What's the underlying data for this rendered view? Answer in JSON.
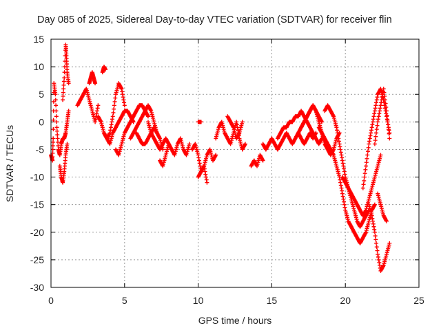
{
  "chart_data": {
    "type": "scatter",
    "title": "Day 085 of 2025, Sidereal Day-to-day VTEC variation (SDTVAR) for receiver flin",
    "xlabel": "GPS time / hours",
    "ylabel": "SDTVAR / TECUs",
    "xlim": [
      0,
      25
    ],
    "ylim": [
      -30,
      15
    ],
    "xticks": [
      "0",
      "5",
      "10",
      "15",
      "20",
      "25"
    ],
    "yticks": [
      "15",
      "10",
      "5",
      "0",
      "-5",
      "-10",
      "-15",
      "-20",
      "-25",
      "-30"
    ],
    "grid": true,
    "marker": "+",
    "series_color": "#ff0000",
    "series": [
      {
        "name": "SDTVAR",
        "segments": [
          {
            "x": [
              0.0,
              0.1,
              0.15,
              0.2,
              0.3,
              0.4,
              0.5,
              0.6,
              0.7,
              0.8,
              0.9,
              1.0,
              1.1,
              1.2
            ],
            "y": [
              -6,
              -7,
              -3,
              7,
              5,
              -1,
              -5,
              -6,
              -4,
              -3,
              -3,
              -2,
              0,
              2
            ]
          },
          {
            "x": [
              0.6,
              0.7,
              0.8,
              0.9,
              1.0,
              1.1
            ],
            "y": [
              -8,
              -10,
              -11,
              -9,
              -6,
              -4
            ]
          },
          {
            "x": [
              0.8,
              0.9,
              1.0,
              1.05,
              1.1,
              1.2
            ],
            "y": [
              4,
              8,
              14,
              12,
              9,
              7
            ]
          },
          {
            "x": [
              1.8,
              2.0,
              2.2,
              2.4,
              2.6,
              2.8,
              3.0,
              3.2
            ],
            "y": [
              3,
              4,
              5,
              6,
              4,
              2,
              0,
              3
            ]
          },
          {
            "x": [
              2.6,
              2.7,
              2.8,
              2.9,
              3.0
            ],
            "y": [
              7,
              8,
              9,
              8,
              7
            ]
          },
          {
            "x": [
              3.5,
              3.6,
              3.7
            ],
            "y": [
              9,
              10,
              9.5
            ]
          },
          {
            "x": [
              3.2,
              3.4,
              3.6,
              3.8,
              4.0,
              4.2,
              4.4,
              4.6,
              4.8,
              5.0
            ],
            "y": [
              1,
              0,
              -2,
              -3,
              -2,
              1,
              5,
              7,
              6,
              3
            ]
          },
          {
            "x": [
              3.6,
              3.8,
              4.0,
              4.2,
              4.4,
              4.6,
              4.8,
              5.0,
              5.2,
              5.4,
              5.6
            ],
            "y": [
              -2,
              -3,
              -4,
              -2,
              -1,
              0,
              1,
              2,
              2,
              1,
              0
            ]
          },
          {
            "x": [
              4.4,
              4.6,
              4.8,
              5.0,
              5.2,
              5.4,
              5.6,
              5.8,
              6.0,
              6.2,
              6.4,
              6.6
            ],
            "y": [
              -5,
              -6,
              -4,
              -2,
              -1,
              0,
              1,
              2,
              3,
              3,
              2,
              1
            ]
          },
          {
            "x": [
              5.4,
              5.6,
              5.8,
              6.0,
              6.2,
              6.4,
              6.6,
              6.8,
              7.0,
              7.2
            ],
            "y": [
              -3,
              -2,
              -1,
              0,
              1,
              2,
              3,
              2,
              0,
              -2
            ]
          },
          {
            "x": [
              5.8,
              6.0,
              6.2,
              6.4,
              6.6,
              6.8,
              7.0,
              7.2,
              7.4,
              7.6
            ],
            "y": [
              -2,
              -3,
              -4,
              -4,
              -3,
              -2,
              -1,
              -2,
              -3,
              -5
            ]
          },
          {
            "x": [
              6.6,
              6.8,
              7.0,
              7.2,
              7.4,
              7.6,
              7.8,
              8.0,
              8.2,
              8.4,
              8.6,
              8.8,
              9.0,
              9.2,
              9.4
            ],
            "y": [
              0,
              -2,
              -3,
              -4,
              -5,
              -4,
              -3,
              -4,
              -5,
              -6,
              -4,
              -3,
              -5,
              -6,
              -4
            ]
          },
          {
            "x": [
              7.4,
              7.6,
              7.8,
              8.0
            ],
            "y": [
              -7,
              -8,
              -6,
              -4
            ]
          },
          {
            "x": [
              9.6,
              9.8,
              10.0,
              10.2,
              10.4,
              10.6,
              10.8,
              11.0,
              11.2
            ],
            "y": [
              -5,
              -4,
              -6,
              -9,
              -8,
              -6,
              -5,
              -7,
              -6
            ]
          },
          {
            "x": [
              10.0,
              10.2,
              10.4,
              10.6
            ],
            "y": [
              -10,
              -9,
              -8,
              -11
            ]
          },
          {
            "x": [
              10.0,
              10.2
            ],
            "y": [
              0,
              0
            ]
          },
          {
            "x": [
              11.2,
              11.4,
              11.6,
              11.8,
              12.0,
              12.2,
              12.4,
              12.6,
              12.8,
              13.0,
              13.2
            ],
            "y": [
              -3,
              -1,
              0,
              -2,
              -3,
              -4,
              -2,
              0,
              -3,
              -5,
              -4
            ]
          },
          {
            "x": [
              12.0,
              12.2,
              12.4,
              12.6,
              12.8,
              13.0
            ],
            "y": [
              1,
              0,
              -1,
              -3,
              -2,
              0
            ]
          },
          {
            "x": [
              13.6,
              13.8,
              14.0,
              14.2,
              14.4
            ],
            "y": [
              -8,
              -7,
              -8,
              -6,
              -7
            ]
          },
          {
            "x": [
              14.4,
              14.6,
              14.8,
              15.0,
              15.2,
              15.4,
              15.6,
              15.8,
              16.0,
              16.2,
              16.4,
              16.6,
              16.8,
              17.0,
              17.2,
              17.4,
              17.6,
              17.8,
              18.0
            ],
            "y": [
              -4,
              -5,
              -4,
              -3,
              -4,
              -5,
              -4,
              -3,
              -2,
              -3,
              -4,
              -3,
              -2,
              -3,
              -4,
              -3,
              -2,
              -3,
              -2
            ]
          },
          {
            "x": [
              15.4,
              15.6,
              15.8,
              16.0,
              16.2,
              16.4,
              16.6,
              16.8,
              17.0,
              17.2,
              17.4,
              17.6,
              17.8,
              18.0,
              18.2,
              18.4
            ],
            "y": [
              -3,
              -2,
              -1,
              -1,
              0,
              0,
              1,
              1,
              2,
              1,
              0,
              -1,
              -2,
              -3,
              -4,
              -3
            ]
          },
          {
            "x": [
              16.8,
              17.0,
              17.2,
              17.4,
              17.6,
              17.8,
              18.0,
              18.2,
              18.4,
              18.6,
              18.8,
              19.0,
              19.2,
              19.4,
              19.6
            ],
            "y": [
              -2,
              -1,
              0,
              1,
              2,
              3,
              2,
              0,
              -2,
              -4,
              -5,
              -6,
              -5,
              -3,
              -2
            ]
          },
          {
            "x": [
              17.0,
              17.2,
              17.4,
              17.6,
              17.8,
              18.0,
              18.2,
              18.4
            ],
            "y": [
              -1,
              0,
              1,
              2,
              3,
              2,
              1,
              0
            ]
          },
          {
            "x": [
              18.2,
              18.4,
              18.6,
              18.8,
              19.0,
              19.2,
              19.4,
              19.6,
              19.8,
              20.0,
              20.2,
              20.4,
              20.6,
              20.8,
              21.0,
              21.2,
              21.4,
              21.6,
              21.8,
              22.0
            ],
            "y": [
              -1,
              -2,
              -3,
              -4,
              -5,
              -6,
              -8,
              -10,
              -13,
              -16,
              -18,
              -19,
              -20,
              -21,
              -22,
              -21,
              -20,
              -18,
              -16,
              -15
            ]
          },
          {
            "x": [
              18.6,
              18.8,
              19.0,
              19.2,
              19.4,
              19.6,
              19.8,
              20.0,
              20.2,
              20.4,
              20.6,
              20.8,
              21.0,
              21.2,
              21.4,
              21.6
            ],
            "y": [
              2,
              3,
              2,
              1,
              -1,
              -4,
              -7,
              -10,
              -12,
              -14,
              -16,
              -18,
              -19,
              -18,
              -17,
              -16
            ]
          },
          {
            "x": [
              19.8,
              20.0,
              20.2,
              20.4,
              20.6,
              20.8,
              21.0,
              21.2,
              21.4,
              21.6,
              21.8,
              22.0,
              22.2,
              22.4
            ],
            "y": [
              -10,
              -11,
              -12,
              -13,
              -14,
              -15,
              -16,
              -17,
              -16,
              -14,
              -12,
              -10,
              -8,
              -6
            ]
          },
          {
            "x": [
              21.2,
              21.4,
              21.6,
              21.8,
              22.0,
              22.2,
              22.4,
              22.6,
              22.8,
              23.0
            ],
            "y": [
              -12,
              -8,
              -4,
              -1,
              2,
              5,
              6,
              4,
              1,
              -2
            ]
          },
          {
            "x": [
              21.6,
              21.8,
              22.0,
              22.2,
              22.4,
              22.6,
              22.8,
              23.0
            ],
            "y": [
              -15,
              -17,
              -20,
              -24,
              -27,
              -26,
              -24,
              -22
            ]
          },
          {
            "x": [
              22.0,
              22.2,
              22.4,
              22.6,
              22.8,
              23.0
            ],
            "y": [
              -4,
              0,
              3,
              6,
              2,
              -3
            ]
          },
          {
            "x": [
              22.2,
              22.4,
              22.6,
              22.8
            ],
            "y": [
              -13,
              -15,
              -17,
              -18
            ]
          }
        ]
      }
    ]
  }
}
